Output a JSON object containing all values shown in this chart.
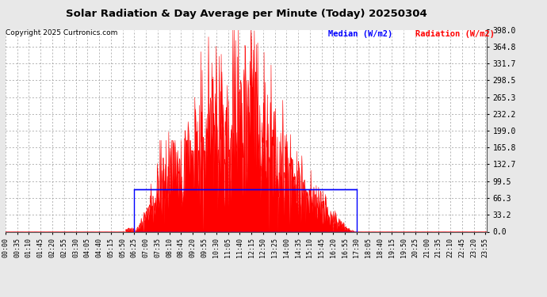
{
  "title": "Solar Radiation & Day Average per Minute (Today) 20250304",
  "copyright": "Copyright 2025 Curtronics.com",
  "legend_median": "Median (W/m2)",
  "legend_radiation": "Radiation (W/m2)",
  "ymax": 398.0,
  "yticks": [
    0.0,
    33.2,
    66.3,
    99.5,
    132.7,
    165.8,
    199.0,
    232.2,
    265.3,
    298.5,
    331.7,
    364.8,
    398.0
  ],
  "background_color": "#e8e8e8",
  "plot_bg_color": "#ffffff",
  "radiation_color": "#ff0000",
  "median_color": "#0000ff",
  "grid_color": "#999999",
  "title_color": "#000000",
  "median_line_y": 83.0,
  "sunrise_min": 385,
  "sunset_min": 1050,
  "total_minutes": 1440,
  "x_tick_labels": [
    "00:00",
    "00:35",
    "01:10",
    "01:45",
    "02:20",
    "02:55",
    "03:30",
    "04:05",
    "04:40",
    "05:15",
    "05:50",
    "06:25",
    "07:00",
    "07:35",
    "08:10",
    "08:45",
    "09:20",
    "09:55",
    "10:30",
    "11:05",
    "11:40",
    "12:15",
    "12:50",
    "13:25",
    "14:00",
    "14:35",
    "15:10",
    "15:45",
    "16:20",
    "16:55",
    "17:30",
    "18:05",
    "18:40",
    "19:15",
    "19:50",
    "20:25",
    "21:00",
    "21:35",
    "22:10",
    "22:45",
    "23:20",
    "23:55"
  ],
  "x_tick_positions": [
    0,
    35,
    70,
    105,
    140,
    175,
    210,
    245,
    280,
    315,
    350,
    385,
    420,
    455,
    490,
    525,
    560,
    595,
    630,
    665,
    700,
    735,
    770,
    805,
    840,
    875,
    910,
    945,
    980,
    1015,
    1050,
    1085,
    1120,
    1155,
    1190,
    1225,
    1260,
    1295,
    1330,
    1365,
    1400,
    1435
  ]
}
